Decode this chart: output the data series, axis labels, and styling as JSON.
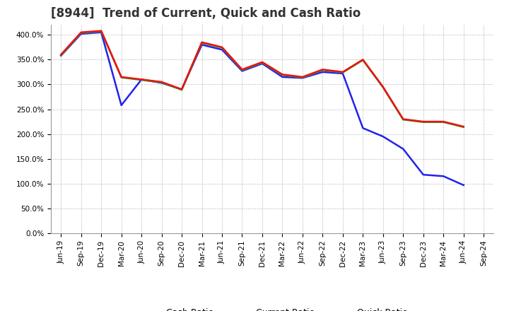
{
  "title": "[8944]  Trend of Current, Quick and Cash Ratio",
  "x_labels": [
    "Jun-19",
    "Sep-19",
    "Dec-19",
    "Mar-20",
    "Jun-20",
    "Sep-20",
    "Dec-20",
    "Mar-21",
    "Jun-21",
    "Sep-21",
    "Dec-21",
    "Mar-22",
    "Jun-22",
    "Sep-22",
    "Dec-22",
    "Mar-23",
    "Jun-23",
    "Sep-23",
    "Dec-23",
    "Mar-24",
    "Jun-24",
    "Sep-24"
  ],
  "current_ratio": [
    360,
    405,
    408,
    315,
    310,
    305,
    290,
    385,
    375,
    330,
    345,
    320,
    315,
    330,
    325,
    350,
    295,
    230,
    225,
    225,
    215,
    null
  ],
  "quick_ratio": [
    359,
    404,
    407,
    314,
    309,
    304,
    289,
    384,
    374,
    329,
    344,
    319,
    314,
    329,
    324,
    349,
    294,
    229,
    224,
    224,
    214,
    null
  ],
  "cash_ratio": [
    358,
    402,
    405,
    258,
    310,
    303,
    290,
    380,
    370,
    327,
    342,
    315,
    313,
    325,
    322,
    212,
    195,
    170,
    118,
    115,
    97,
    null
  ],
  "current_color": "#ee1111",
  "quick_color": "#22aa22",
  "cash_color": "#2222ee",
  "ylim": [
    0,
    420
  ],
  "yticks": [
    0,
    50,
    100,
    150,
    200,
    250,
    300,
    350,
    400
  ],
  "background_color": "#ffffff",
  "grid_color": "#aaaaaa",
  "line_width": 1.8,
  "title_fontsize": 12,
  "legend_fontsize": 9,
  "tick_fontsize": 7.5
}
